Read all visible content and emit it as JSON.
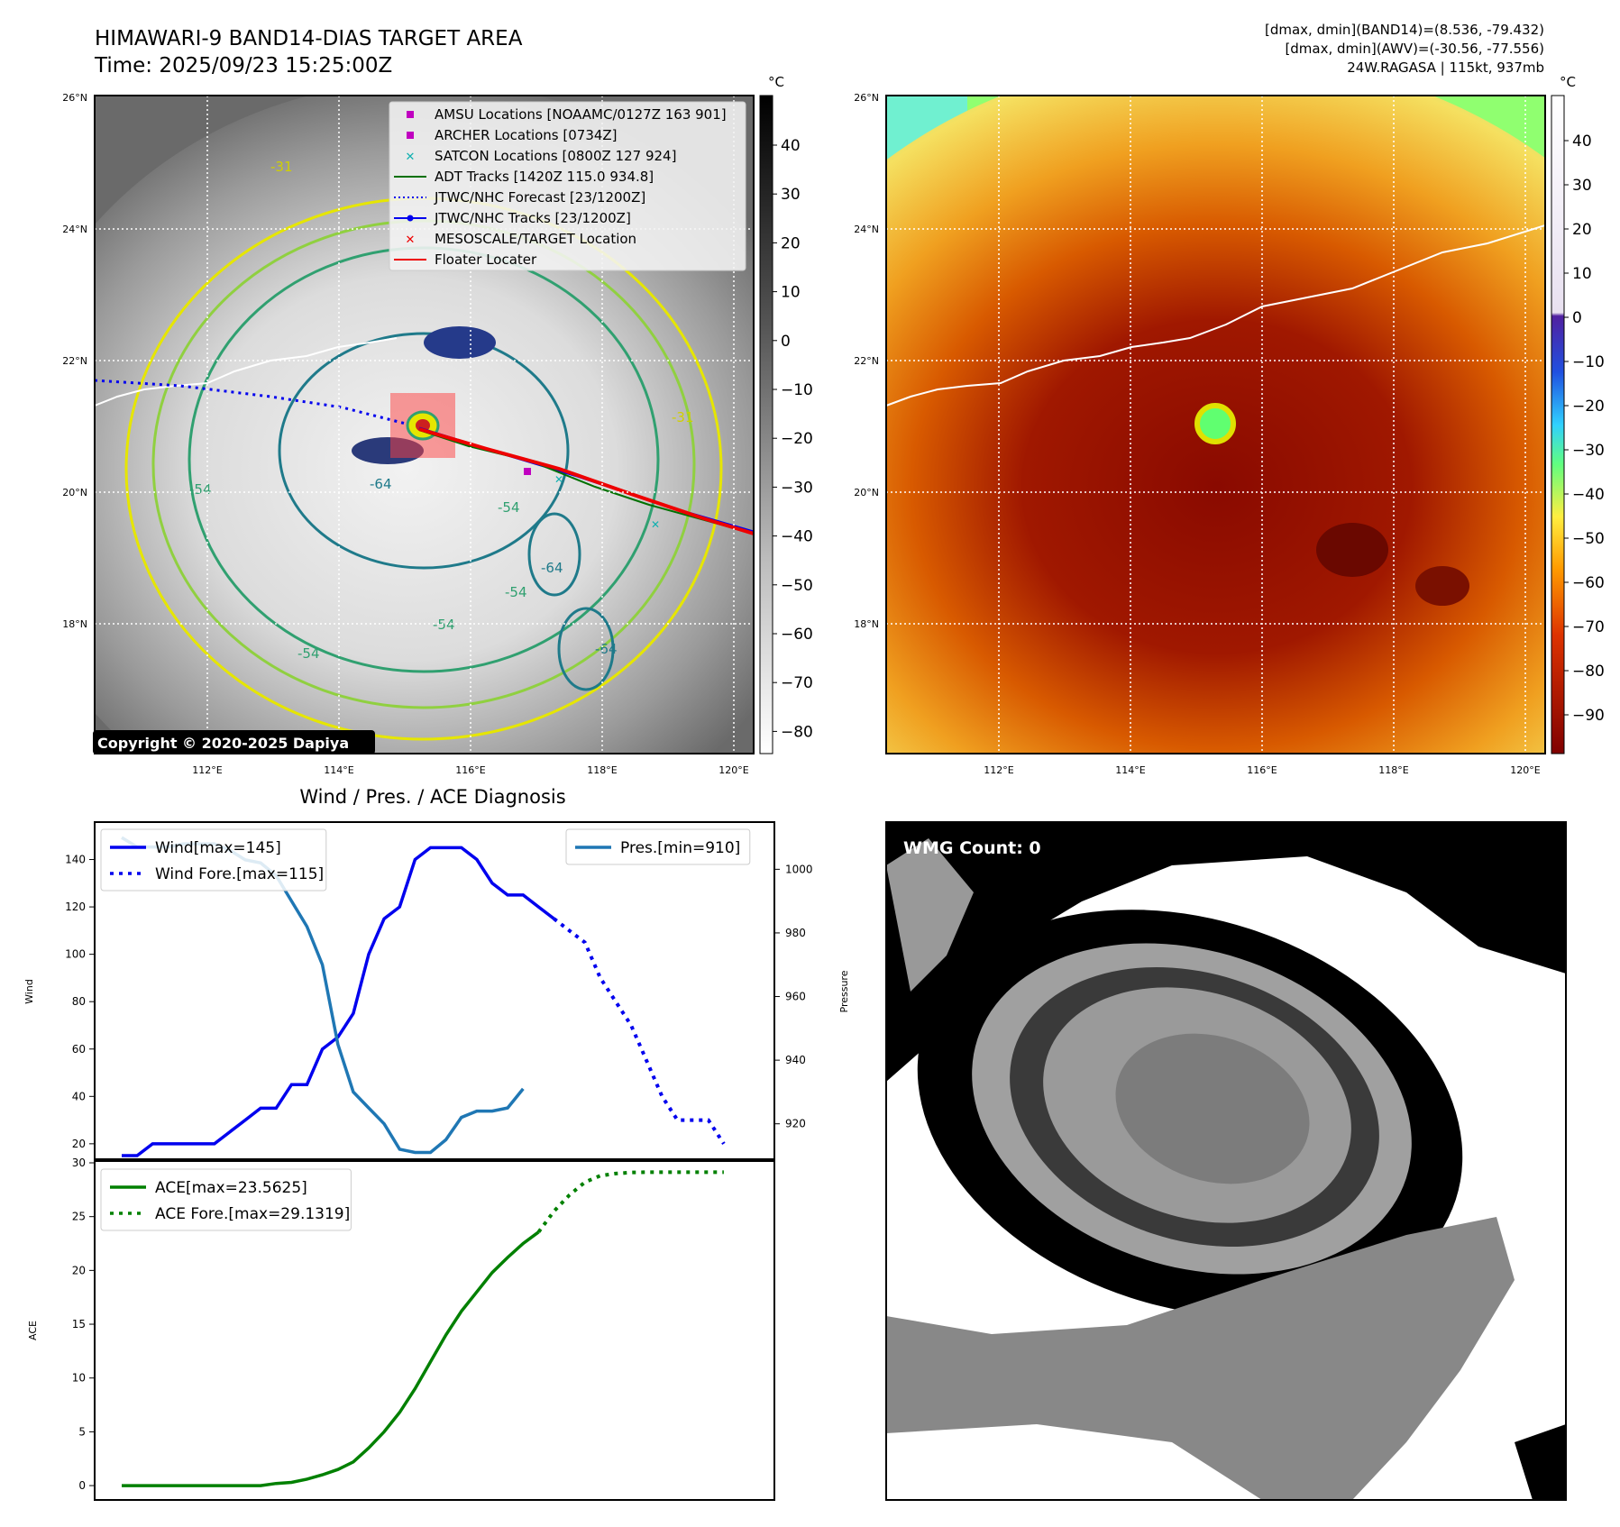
{
  "header": {
    "title_line1": "HIMAWARI-9 BAND14-DIAS TARGET AREA",
    "title_line2": "Time: 2025/09/23 15:25:00Z",
    "info_line1": "[dmax, dmin](BAND14)=(8.536, -79.432)",
    "info_line2": "[dmax, dmin](AWV)=(-30.56, -77.556)",
    "info_line3": "24W.RAGASA | 115kt, 937mb"
  },
  "map_axes": {
    "lat_ticks": [
      "26°N",
      "24°N",
      "22°N",
      "20°N",
      "18°N"
    ],
    "lon_ticks": [
      "112°E",
      "114°E",
      "116°E",
      "118°E",
      "120°E"
    ]
  },
  "ir_panel": {
    "colorbar_unit": "°C",
    "colorbar_ticks": [
      "40",
      "30",
      "20",
      "10",
      "0",
      "−10",
      "−20",
      "−30",
      "−40",
      "−50",
      "−60",
      "−70",
      "−80"
    ],
    "contour_labels": [
      "-31",
      "-54",
      "-64",
      "-54",
      "-64",
      "-54",
      "-54",
      "-31",
      "-54",
      "-64"
    ],
    "copyright": "Copyright © 2020-2025 Dapiya",
    "legend": [
      {
        "label": "AMSU Locations [NOAAMC/0127Z 163 901]",
        "marker": "square",
        "color": "#c000c0"
      },
      {
        "label": "ARCHER Locations [0734Z]",
        "marker": "square",
        "color": "#c000c0"
      },
      {
        "label": "SATCON Locations [0800Z 127 924]",
        "marker": "x",
        "color": "#10b0b0"
      },
      {
        "label": "ADT Tracks [1420Z 115.0 934.8]",
        "marker": "line",
        "color": "#007000"
      },
      {
        "label": "JTWC/NHC Forecast [23/1200Z]",
        "marker": "dotted",
        "color": "#0000ee"
      },
      {
        "label": "JTWC/NHC Tracks [23/1200Z]",
        "marker": "line-dot",
        "color": "#0000ee"
      },
      {
        "label": "MESOSCALE/TARGET Location",
        "marker": "x",
        "color": "#ee0000"
      },
      {
        "label": "Floater Locater",
        "marker": "line",
        "color": "#ee0000"
      }
    ]
  },
  "awv_panel": {
    "colorbar_unit": "°C",
    "colorbar_ticks": [
      "40",
      "30",
      "20",
      "10",
      "0",
      "−10",
      "−20",
      "−30",
      "−40",
      "−50",
      "−60",
      "−70",
      "−80",
      "−90"
    ]
  },
  "wmg_panel": {
    "label": "WMG Count: 0"
  },
  "chart_data": [
    {
      "type": "line",
      "title": "Wind / Pres. / ACE Diagnosis",
      "ylabel": "Wind",
      "y2label": "Pressure",
      "ylim": [
        15,
        152
      ],
      "y2lim": [
        910,
        1012
      ],
      "yticks": [
        "20",
        "40",
        "60",
        "80",
        "100",
        "120",
        "140"
      ],
      "y2ticks": [
        "920",
        "940",
        "960",
        "980",
        "1000"
      ],
      "series": [
        {
          "name": "Wind[max=145]",
          "color": "#0000ee",
          "style": "solid",
          "axis": "left",
          "values": [
            15,
            15,
            20,
            20,
            20,
            20,
            20,
            25,
            30,
            35,
            35,
            45,
            45,
            60,
            65,
            75,
            100,
            115,
            120,
            140,
            145,
            145,
            145,
            140,
            130,
            125,
            125,
            120,
            115
          ]
        },
        {
          "name": "Wind Fore.[max=115]",
          "color": "#0000ee",
          "style": "dotted",
          "axis": "left",
          "x_start": 28,
          "values": [
            115,
            110,
            105,
            90,
            80,
            70,
            55,
            40,
            30,
            30,
            30,
            20
          ]
        },
        {
          "name": "Pres.[min=910]",
          "color": "#1f77b4",
          "style": "solid",
          "axis": "right",
          "values": [
            1010,
            1007,
            1007,
            1007,
            1008,
            1008,
            1008,
            1006,
            1003,
            1002,
            998,
            990,
            982,
            970,
            945,
            930,
            925,
            920,
            912,
            911,
            911,
            915,
            922,
            924,
            924,
            925,
            931
          ]
        }
      ],
      "legend_left": [
        "Wind[max=145]",
        "Wind Fore.[max=115]"
      ],
      "legend_right": [
        "Pres.[min=910]"
      ]
    },
    {
      "type": "line",
      "ylabel": "ACE",
      "ylim": [
        -1,
        30
      ],
      "yticks": [
        "0",
        "5",
        "10",
        "15",
        "20",
        "25",
        "30"
      ],
      "series": [
        {
          "name": "ACE[max=23.5625]",
          "color": "#008000",
          "style": "solid",
          "values": [
            0,
            0,
            0,
            0,
            0,
            0,
            0,
            0,
            0,
            0,
            0.2,
            0.3,
            0.6,
            1.0,
            1.5,
            2.2,
            3.5,
            5.0,
            6.8,
            9.0,
            11.5,
            14.0,
            16.2,
            18.0,
            19.8,
            21.2,
            22.5,
            23.5625
          ]
        },
        {
          "name": "ACE Fore.[max=29.1319]",
          "color": "#008000",
          "style": "dotted",
          "x_start": 27,
          "values": [
            23.5625,
            25.5,
            27.0,
            28.2,
            28.8,
            29.0,
            29.1,
            29.1319,
            29.1319,
            29.1319,
            29.1319,
            29.1319,
            29.1319
          ]
        }
      ],
      "legend": [
        "ACE[max=23.5625]",
        "ACE Fore.[max=29.1319]"
      ]
    }
  ]
}
